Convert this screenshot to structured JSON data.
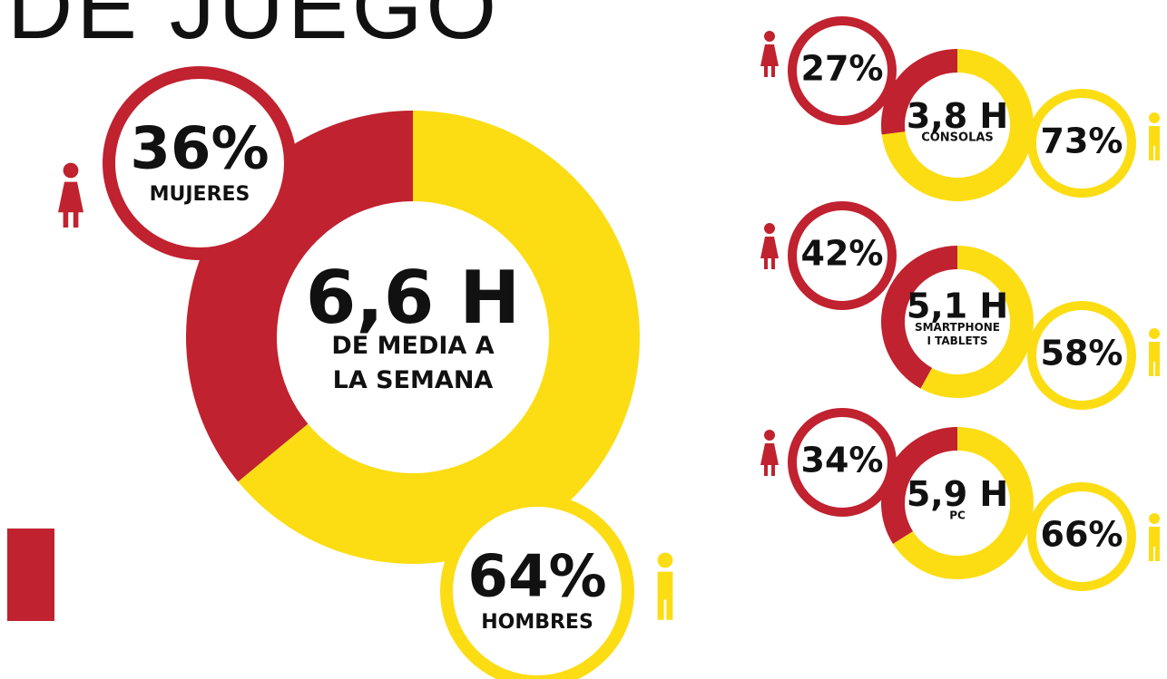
{
  "title": "DE JUEGO",
  "chart_data": [
    {
      "type": "donut",
      "center_value": "6,6 H",
      "center_label": [
        "DE MEDIA A",
        "LA SEMANA"
      ],
      "categories": [
        "MUJERES",
        "HOMBRES"
      ],
      "values": [
        36,
        64
      ],
      "value_labels": [
        "36%",
        "64%"
      ],
      "colors": [
        "#c0222f",
        "#fcdd14"
      ]
    },
    {
      "type": "donut",
      "center_value": "3,8 H",
      "center_label": [
        "CONSOLAS"
      ],
      "values": [
        27,
        73
      ],
      "value_labels": [
        "27%",
        "73%"
      ],
      "colors": [
        "#c0222f",
        "#fcdd14"
      ]
    },
    {
      "type": "donut",
      "center_value": "5,1 H",
      "center_label": [
        "SMARTPHONE",
        "I TABLETS"
      ],
      "values": [
        42,
        58
      ],
      "value_labels": [
        "42%",
        "58%"
      ],
      "colors": [
        "#c0222f",
        "#fcdd14"
      ]
    },
    {
      "type": "donut",
      "center_value": "5,9 H",
      "center_label": [
        "PC"
      ],
      "values": [
        34,
        66
      ],
      "value_labels": [
        "34%",
        "66%"
      ],
      "colors": [
        "#c0222f",
        "#fcdd14"
      ]
    }
  ]
}
